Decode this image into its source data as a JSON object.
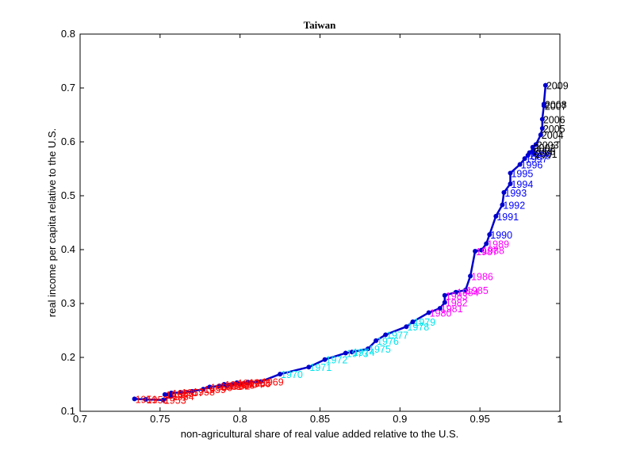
{
  "chart_data": {
    "type": "line",
    "title": "Taiwan",
    "xlabel": "non-agricultural share of real value added relative to the U.S.",
    "ylabel": "real income per capita relative to the U.S.",
    "xlim": [
      0.7,
      1.0
    ],
    "ylim": [
      0.1,
      0.8
    ],
    "xticks": [
      "0.7",
      "0.75",
      "0.8",
      "0.85",
      "0.9",
      "0.95",
      "1"
    ],
    "yticks": [
      "0.1",
      "0.2",
      "0.3",
      "0.4",
      "0.5",
      "0.6",
      "0.7",
      "0.8"
    ],
    "grid": false,
    "line_color": "#0000cc",
    "label_colors": {
      "1960s": "#ff0000",
      "1970s": "#00e5ee",
      "1980s": "#ff00ff",
      "1990s": "#0000ff",
      "2000s": "#000000"
    },
    "points": [
      {
        "label": "1951",
        "x": 0.734,
        "y": 0.123
      },
      {
        "label": "1952",
        "x": 0.741,
        "y": 0.122
      },
      {
        "label": "1953",
        "x": 0.752,
        "y": 0.121
      },
      {
        "label": "1954",
        "x": 0.757,
        "y": 0.128
      },
      {
        "label": "1955",
        "x": 0.753,
        "y": 0.131
      },
      {
        "label": "1956",
        "x": 0.757,
        "y": 0.134
      },
      {
        "label": "1957",
        "x": 0.763,
        "y": 0.135
      },
      {
        "label": "1958",
        "x": 0.77,
        "y": 0.137
      },
      {
        "label": "1959",
        "x": 0.777,
        "y": 0.141
      },
      {
        "label": "1960",
        "x": 0.781,
        "y": 0.145
      },
      {
        "label": "1961",
        "x": 0.787,
        "y": 0.147
      },
      {
        "label": "1962",
        "x": 0.792,
        "y": 0.148
      },
      {
        "label": "1963",
        "x": 0.795,
        "y": 0.149
      },
      {
        "label": "1964",
        "x": 0.8,
        "y": 0.151
      },
      {
        "label": "1965",
        "x": 0.805,
        "y": 0.152
      },
      {
        "label": "1966",
        "x": 0.79,
        "y": 0.15
      },
      {
        "label": "1967",
        "x": 0.798,
        "y": 0.153
      },
      {
        "label": "1968",
        "x": 0.805,
        "y": 0.154
      },
      {
        "label": "1969",
        "x": 0.813,
        "y": 0.155
      },
      {
        "label": "1970",
        "x": 0.825,
        "y": 0.169
      },
      {
        "label": "1971",
        "x": 0.843,
        "y": 0.182
      },
      {
        "label": "1972",
        "x": 0.853,
        "y": 0.196
      },
      {
        "label": "1973",
        "x": 0.866,
        "y": 0.208
      },
      {
        "label": "1974",
        "x": 0.87,
        "y": 0.21
      },
      {
        "label": "1975",
        "x": 0.88,
        "y": 0.216
      },
      {
        "label": "1976",
        "x": 0.885,
        "y": 0.231
      },
      {
        "label": "1977",
        "x": 0.891,
        "y": 0.242
      },
      {
        "label": "1978",
        "x": 0.904,
        "y": 0.257
      },
      {
        "label": "1979",
        "x": 0.908,
        "y": 0.266
      },
      {
        "label": "1980",
        "x": 0.918,
        "y": 0.283
      },
      {
        "label": "1981",
        "x": 0.925,
        "y": 0.291
      },
      {
        "label": "1982",
        "x": 0.928,
        "y": 0.302
      },
      {
        "label": "1983",
        "x": 0.928,
        "y": 0.315
      },
      {
        "label": "1984",
        "x": 0.935,
        "y": 0.321
      },
      {
        "label": "1985",
        "x": 0.941,
        "y": 0.325
      },
      {
        "label": "1986",
        "x": 0.944,
        "y": 0.351
      },
      {
        "label": "1987",
        "x": 0.947,
        "y": 0.397
      },
      {
        "label": "1988",
        "x": 0.951,
        "y": 0.399
      },
      {
        "label": "1989",
        "x": 0.954,
        "y": 0.411
      },
      {
        "label": "1990",
        "x": 0.956,
        "y": 0.428
      },
      {
        "label": "1991",
        "x": 0.96,
        "y": 0.462
      },
      {
        "label": "1992",
        "x": 0.964,
        "y": 0.483
      },
      {
        "label": "1993",
        "x": 0.965,
        "y": 0.506
      },
      {
        "label": "1994",
        "x": 0.969,
        "y": 0.522
      },
      {
        "label": "1995",
        "x": 0.969,
        "y": 0.542
      },
      {
        "label": "1996",
        "x": 0.975,
        "y": 0.558
      },
      {
        "label": "1997",
        "x": 0.978,
        "y": 0.569
      },
      {
        "label": "1998",
        "x": 0.98,
        "y": 0.575
      },
      {
        "label": "1999",
        "x": 0.981,
        "y": 0.58
      },
      {
        "label": "2000",
        "x": 0.983,
        "y": 0.583
      },
      {
        "label": "2001",
        "x": 0.984,
        "y": 0.578
      },
      {
        "label": "2002",
        "x": 0.983,
        "y": 0.59
      },
      {
        "label": "2003",
        "x": 0.985,
        "y": 0.595
      },
      {
        "label": "2004",
        "x": 0.988,
        "y": 0.613
      },
      {
        "label": "2005",
        "x": 0.989,
        "y": 0.625
      },
      {
        "label": "2006",
        "x": 0.989,
        "y": 0.642
      },
      {
        "label": "2007",
        "x": 0.99,
        "y": 0.667
      },
      {
        "label": "2008",
        "x": 0.99,
        "y": 0.67
      },
      {
        "label": "2009",
        "x": 0.991,
        "y": 0.705
      }
    ]
  }
}
